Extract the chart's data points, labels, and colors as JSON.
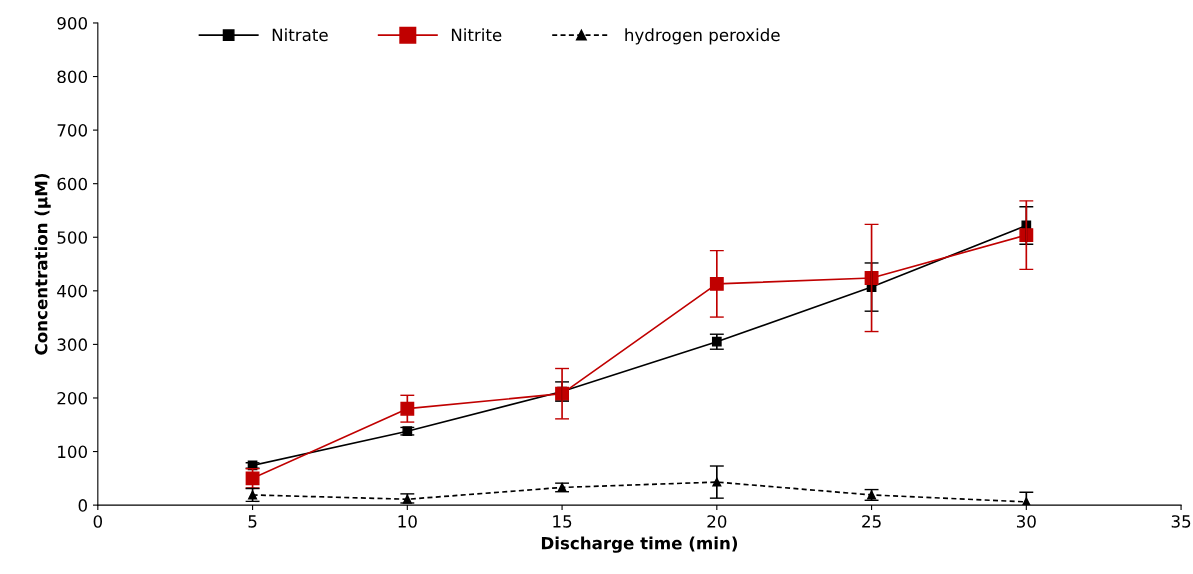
{
  "chart_data": {
    "type": "line",
    "xlabel": "Discharge time (min)",
    "ylabel": "Concentration (µM)",
    "x": [
      5,
      10,
      15,
      20,
      25,
      30
    ],
    "xlim": [
      0,
      35
    ],
    "xticks": [
      0,
      5,
      10,
      15,
      20,
      25,
      30,
      35
    ],
    "ylim": [
      0,
      900
    ],
    "yticks": [
      0,
      100,
      200,
      300,
      400,
      500,
      600,
      700,
      800,
      900
    ],
    "grid": false,
    "legend": "top left",
    "series": [
      {
        "name": "Nitrate",
        "color": "#000000",
        "marker": "square",
        "line_style": "solid",
        "values": [
          74,
          138,
          212,
          305,
          407,
          522
        ],
        "errors": [
          5,
          7,
          18,
          14,
          45,
          35
        ]
      },
      {
        "name": "Nitrite",
        "color": "#c00000",
        "marker": "square",
        "line_style": "solid",
        "values": [
          50,
          180,
          208,
          413,
          424,
          504
        ],
        "errors": [
          18,
          25,
          47,
          62,
          100,
          64
        ]
      },
      {
        "name": "hydrogen peroxide",
        "color": "#000000",
        "marker": "triangle",
        "line_style": "dashed",
        "values": [
          19,
          11,
          33,
          43,
          19,
          6
        ],
        "errors": [
          12,
          [
            7,
            10
          ],
          8,
          30,
          10,
          18
        ]
      }
    ]
  }
}
